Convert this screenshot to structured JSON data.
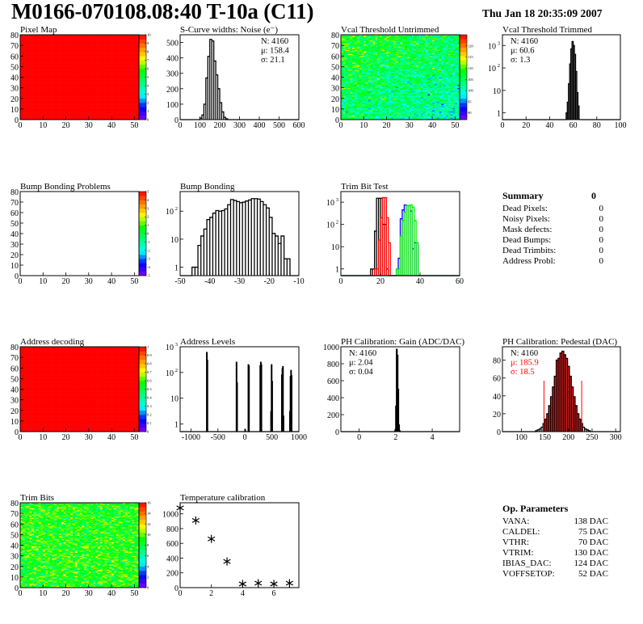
{
  "header": {
    "title": "M0166-070108.08:40 T-10a (C11)",
    "date": "Thu Jan 18 20:35:09 2007"
  },
  "palette": [
    "#8000ff",
    "#0000ff",
    "#00ffff",
    "#00ff80",
    "#00ff00",
    "#ffff00",
    "#ff8000",
    "#ff0000"
  ],
  "chart_data": [
    {
      "id": "pixel_map",
      "type": "heatmap",
      "title": "Pixel Map",
      "xlim": [
        0,
        52
      ],
      "ylim": [
        0,
        80
      ],
      "xticks": [
        "0",
        "10",
        "20",
        "30",
        "40",
        "50"
      ],
      "yticks": [
        "0",
        "10",
        "20",
        "30",
        "40",
        "50",
        "60",
        "70",
        "80"
      ],
      "zlim": [
        0,
        10
      ],
      "zticks": [
        "0",
        "1",
        "2",
        "3",
        "4",
        "5",
        "6",
        "7",
        "8",
        "9",
        "10"
      ],
      "cols": 52,
      "rows": 80,
      "fill": "uniform",
      "z": 10
    },
    {
      "id": "scurve",
      "type": "histogram",
      "title": "S-Curve widths: Noise (e⁻)",
      "xlim": [
        0,
        600
      ],
      "ylim": [
        0,
        550
      ],
      "xticks": [
        "0",
        "100",
        "200",
        "300",
        "400",
        "500",
        "600"
      ],
      "yticks": [
        "0",
        "100",
        "200",
        "300",
        "400",
        "500"
      ],
      "series": [
        {
          "color": "#000000",
          "x0": 100,
          "width": 10,
          "values": [
            10,
            30,
            100,
            270,
            410,
            520,
            510,
            380,
            290,
            200,
            110,
            50,
            15,
            5
          ]
        }
      ],
      "stats": {
        "lines": [
          "N: 4160",
          "μ: 158.4",
          "σ: 21.1"
        ],
        "colors": [
          "#000",
          "#000",
          "#000"
        ]
      }
    },
    {
      "id": "vcal_untrimmed",
      "type": "heatmap",
      "title": "Vcal Threshold Untrimmed",
      "xlim": [
        0,
        52
      ],
      "ylim": [
        0,
        80
      ],
      "xticks": [
        "0",
        "10",
        "20",
        "30",
        "40",
        "50"
      ],
      "yticks": [
        "0",
        "10",
        "20",
        "30",
        "40",
        "50",
        "60",
        "70",
        "80"
      ],
      "zlim": [
        87,
        125
      ],
      "zticks": [
        "90",
        "95",
        "100",
        "105",
        "110",
        "115",
        "120"
      ],
      "cols": 52,
      "rows": 80,
      "fill": "noise",
      "z": 104,
      "spread": 5
    },
    {
      "id": "vcal_trimmed",
      "type": "histogram",
      "title": "Vcal Threshold Trimmed",
      "xlim": [
        0,
        100
      ],
      "ylim": [
        0.5,
        3000
      ],
      "log": true,
      "xticks": [
        "0",
        "20",
        "40",
        "60",
        "80",
        "100"
      ],
      "yticks": [
        "1",
        "10",
        "10^2",
        "10^3"
      ],
      "series": [
        {
          "color": "#000000",
          "x0": 54,
          "width": 1,
          "values": [
            1,
            3,
            20,
            150,
            700,
            1500,
            1000,
            400,
            70,
            8,
            2,
            0
          ]
        }
      ],
      "stats": {
        "lines": [
          "N: 4160",
          "μ: 60.6",
          "σ:  1.3"
        ],
        "colors": [
          "#000",
          "#000",
          "#000"
        ]
      }
    },
    {
      "id": "bump_problems",
      "type": "heatmap",
      "title": "Bump Bonding Problems",
      "xlim": [
        0,
        52
      ],
      "ylim": [
        0,
        80
      ],
      "xticks": [
        "0",
        "10",
        "20",
        "30",
        "40",
        "50"
      ],
      "yticks": [
        "0",
        "10",
        "20",
        "30",
        "40",
        "50",
        "60",
        "70",
        "80"
      ],
      "zlim": [
        -5,
        5
      ],
      "zticks": [
        "-5",
        "-4",
        "-3",
        "-2",
        "-1",
        "0",
        "1",
        "2",
        "3",
        "4",
        "5"
      ],
      "cols": 52,
      "rows": 80,
      "fill": "empty"
    },
    {
      "id": "bump_bonding",
      "type": "histogram",
      "title": "Bump Bonding",
      "xlim": [
        -50,
        -10
      ],
      "ylim": [
        0.5,
        500
      ],
      "log": true,
      "xticks": [
        "-50",
        "-40",
        "-30",
        "-20",
        "-10"
      ],
      "yticks": [
        "1",
        "10",
        "10^2"
      ],
      "series": [
        {
          "color": "#000000",
          "x0": -46,
          "width": 1,
          "values": [
            1,
            1,
            6,
            13,
            23,
            50,
            60,
            85,
            105,
            100,
            105,
            120,
            170,
            260,
            240,
            220,
            200,
            210,
            230,
            250,
            280,
            280,
            270,
            220,
            170,
            130,
            60,
            16,
            13,
            7,
            13,
            2,
            2
          ]
        }
      ]
    },
    {
      "id": "trim_bit_test",
      "type": "histogram",
      "title": "Trim Bit Test",
      "xlim": [
        0,
        60
      ],
      "ylim": [
        0.5,
        3000
      ],
      "log": true,
      "xticks": [
        "0",
        "20",
        "40",
        "60"
      ],
      "yticks": [
        "1",
        "10",
        "10^2",
        "10^3"
      ],
      "series": [
        {
          "color": "#000000",
          "x0": 15,
          "width": 1,
          "values": [
            1,
            1,
            50,
            1500,
            1500,
            1500,
            100,
            100,
            1
          ]
        },
        {
          "color": "#ff0000",
          "x0": 17,
          "width": 1,
          "values": [
            1,
            1,
            20,
            200,
            1600,
            1600,
            200,
            15
          ]
        },
        {
          "color": "#0000ff",
          "x0": 28,
          "width": 1,
          "values": [
            1,
            3,
            180,
            450,
            750,
            700,
            700,
            400,
            8,
            15,
            15
          ]
        },
        {
          "color": "#00ee00",
          "x0": 28,
          "width": 1,
          "values": [
            1,
            1,
            30,
            150,
            350,
            700,
            700,
            750,
            600,
            150,
            15
          ]
        }
      ]
    },
    {
      "id": "address_decoding",
      "type": "heatmap",
      "title": "Address decoding",
      "xlim": [
        0,
        52
      ],
      "ylim": [
        0,
        80
      ],
      "xticks": [
        "0",
        "10",
        "20",
        "30",
        "40",
        "50"
      ],
      "yticks": [
        "0",
        "10",
        "20",
        "30",
        "40",
        "50",
        "60",
        "70",
        "80"
      ],
      "zlim": [
        0,
        1
      ],
      "zticks": [
        "0",
        "0.1",
        "0.2",
        "0.3",
        "0.4",
        "0.5",
        "0.6",
        "0.7",
        "0.8",
        "0.9",
        "1"
      ],
      "cols": 52,
      "rows": 80,
      "fill": "uniform",
      "z": 1
    },
    {
      "id": "address_levels",
      "type": "histogram",
      "title": "Address Levels",
      "xlim": [
        -1200,
        1000
      ],
      "ylim": [
        0.5,
        1000
      ],
      "log": true,
      "xticks": [
        "-1000",
        "-500",
        "0",
        "500",
        "1000"
      ],
      "yticks": [
        "1",
        "10",
        "10^2",
        "10^3"
      ],
      "series": [
        {
          "color": "#000000",
          "width": 10,
          "bins": [
            [
              -710,
              600
            ],
            [
              -700,
              300
            ],
            [
              -160,
              250
            ],
            [
              -150,
              40
            ],
            [
              0,
              0.6
            ],
            [
              60,
              200
            ],
            [
              70,
              180
            ],
            [
              280,
              180
            ],
            [
              290,
              250
            ],
            [
              300,
              200
            ],
            [
              480,
              3
            ],
            [
              490,
              200
            ],
            [
              500,
              45
            ],
            [
              680,
              80
            ],
            [
              690,
              140
            ],
            [
              700,
              170
            ],
            [
              710,
              2
            ],
            [
              830,
              3
            ],
            [
              840,
              70
            ],
            [
              850,
              120
            ],
            [
              860,
              75
            ]
          ]
        }
      ]
    },
    {
      "id": "ph_gain",
      "type": "histogram",
      "title": "PH Calibration: Gain (ADC/DAC)",
      "xlim": [
        -1,
        5.5
      ],
      "ylim": [
        0,
        1000
      ],
      "xticks": [
        "0",
        "2",
        "4"
      ],
      "yticks": [
        "0",
        "200",
        "400",
        "600",
        "800",
        "1000"
      ],
      "series": [
        {
          "color": "#000000",
          "x0": 1.96,
          "width": 0.04,
          "values": [
            20,
            300,
            970,
            900,
            500,
            80,
            10
          ]
        }
      ],
      "stats": {
        "lines": [
          "N: 4160",
          "μ: 2.04",
          "σ: 0.04"
        ],
        "colors": [
          "#000",
          "#000",
          "#000"
        ]
      }
    },
    {
      "id": "ph_pedestal",
      "type": "histogram",
      "title": "PH Calibration: Pedestal (DAC)",
      "xlim": [
        60,
        310
      ],
      "ylim": [
        0,
        95
      ],
      "xticks": [
        "100",
        "150",
        "200",
        "250",
        "300"
      ],
      "yticks": [
        "0",
        "20",
        "40",
        "60",
        "80"
      ],
      "series": [
        {
          "color": "#000000",
          "x0": 130,
          "width": 4,
          "values": [
            1,
            2,
            3,
            5,
            9,
            14,
            20,
            29,
            39,
            50,
            62,
            80,
            82,
            88,
            90,
            86,
            82,
            73,
            62,
            50,
            39,
            29,
            20,
            14,
            9,
            5,
            3,
            2,
            1
          ],
          "fill_range": [
            148,
            228
          ],
          "fill_color": "#ff0000"
        }
      ],
      "markers": [
        148,
        228
      ],
      "stats": {
        "lines": [
          "N: 4160",
          "μ: 185.9",
          "σ: 18.5"
        ],
        "colors": [
          "#000",
          "#ff0000",
          "#ff0000"
        ]
      }
    },
    {
      "id": "trim_bits",
      "type": "heatmap",
      "title": "Trim Bits",
      "xlim": [
        0,
        52
      ],
      "ylim": [
        0,
        80
      ],
      "xticks": [
        "0",
        "10",
        "20",
        "30",
        "40",
        "50"
      ],
      "yticks": [
        "0",
        "10",
        "20",
        "30",
        "40",
        "50",
        "60",
        "70",
        "80"
      ],
      "zlim": [
        0,
        16
      ],
      "zticks": [
        "0",
        "2",
        "4",
        "6",
        "8",
        "10",
        "12",
        "14",
        "16"
      ],
      "cols": 52,
      "rows": 80,
      "fill": "noise",
      "z": 9,
      "spread": 2
    },
    {
      "id": "temperature",
      "type": "scatter",
      "title": "Temperature calibration",
      "xlim": [
        0,
        7.6
      ],
      "ylim": [
        0,
        1150
      ],
      "xticks": [
        "0",
        "2",
        "4",
        "6"
      ],
      "yticks": [
        "0",
        "200",
        "400",
        "600",
        "800",
        "1000"
      ],
      "points": [
        [
          0,
          1080
        ],
        [
          1,
          910
        ],
        [
          2,
          660
        ],
        [
          3,
          355
        ],
        [
          4,
          50
        ],
        [
          5,
          60
        ],
        [
          6,
          50
        ],
        [
          7,
          60
        ]
      ]
    }
  ],
  "summary": {
    "title": "Summary",
    "total": "0",
    "items": [
      {
        "label": "Dead Pixels:",
        "value": "0"
      },
      {
        "label": "Noisy Pixels:",
        "value": "0"
      },
      {
        "label": "Mask defects:",
        "value": "0"
      },
      {
        "label": "Dead Bumps:",
        "value": "0"
      },
      {
        "label": "Dead Trimbits:",
        "value": "0"
      },
      {
        "label": "Address Probl:",
        "value": "0"
      }
    ]
  },
  "op_parameters": {
    "title": "Op. Parameters",
    "items": [
      {
        "label": "VANA:",
        "value": "138 DAC"
      },
      {
        "label": "CALDEL:",
        "value": "75 DAC"
      },
      {
        "label": "VTHR:",
        "value": "70 DAC"
      },
      {
        "label": "VTRIM:",
        "value": "130 DAC"
      },
      {
        "label": "IBIAS_DAC:",
        "value": "124 DAC"
      },
      {
        "label": "VOFFSETOP:",
        "value": "52 DAC"
      }
    ]
  }
}
